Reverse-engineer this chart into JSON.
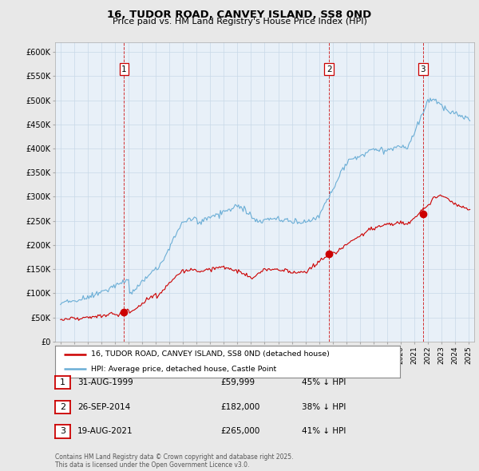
{
  "title": "16, TUDOR ROAD, CANVEY ISLAND, SS8 0ND",
  "subtitle": "Price paid vs. HM Land Registry's House Price Index (HPI)",
  "ylim": [
    0,
    620000
  ],
  "ytick_values": [
    0,
    50000,
    100000,
    150000,
    200000,
    250000,
    300000,
    350000,
    400000,
    450000,
    500000,
    550000,
    600000
  ],
  "sale_dates_num": [
    1999.67,
    2014.73,
    2021.63
  ],
  "sale_prices": [
    59999,
    182000,
    265000
  ],
  "sale_labels": [
    "1",
    "2",
    "3"
  ],
  "hpi_color": "#6baed6",
  "price_color": "#cc0000",
  "legend_price_label": "16, TUDOR ROAD, CANVEY ISLAND, SS8 0ND (detached house)",
  "legend_hpi_label": "HPI: Average price, detached house, Castle Point",
  "table_rows": [
    {
      "num": "1",
      "date": "31-AUG-1999",
      "price": "£59,999",
      "pct": "45% ↓ HPI"
    },
    {
      "num": "2",
      "date": "26-SEP-2014",
      "price": "£182,000",
      "pct": "38% ↓ HPI"
    },
    {
      "num": "3",
      "date": "19-AUG-2021",
      "price": "£265,000",
      "pct": "41% ↓ HPI"
    }
  ],
  "footer": "Contains HM Land Registry data © Crown copyright and database right 2025.\nThis data is licensed under the Open Government Licence v3.0.",
  "background_color": "#e8e8e8",
  "plot_background": "#e8f0f8"
}
